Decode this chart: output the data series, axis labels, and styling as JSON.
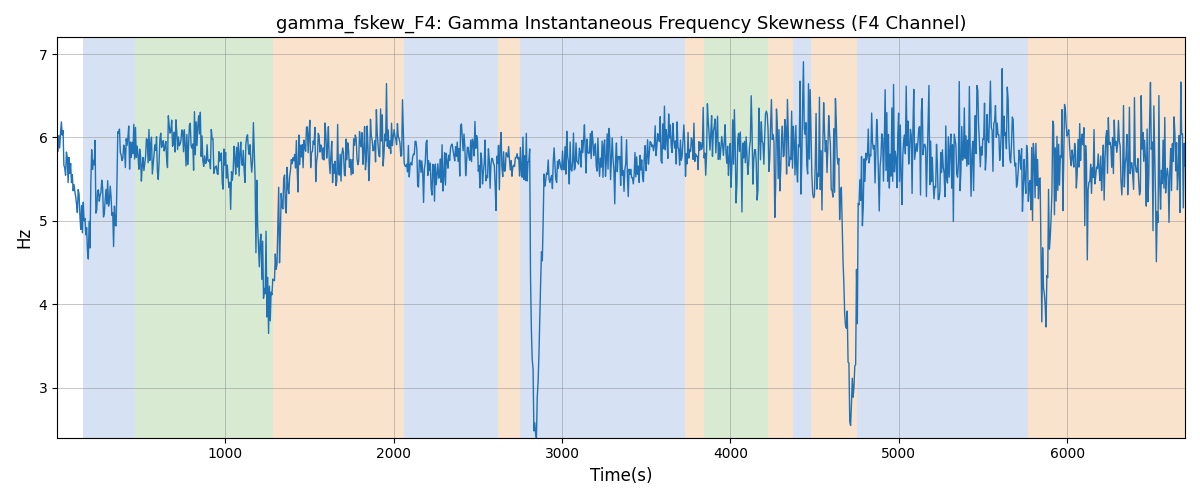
{
  "title": "gamma_fskew_F4: Gamma Instantaneous Frequency Skewness (F4 Channel)",
  "xlabel": "Time(s)",
  "ylabel": "Hz",
  "ylim": [
    2.4,
    7.2
  ],
  "xlim": [
    0,
    6700
  ],
  "yticks": [
    3,
    4,
    5,
    6,
    7
  ],
  "xticks": [
    1000,
    2000,
    3000,
    4000,
    5000,
    6000
  ],
  "line_color": "#2171b5",
  "line_width": 1.0,
  "bg_bands": [
    {
      "xmin": 155,
      "xmax": 460,
      "color": "#aec6e8",
      "alpha": 0.5
    },
    {
      "xmin": 460,
      "xmax": 1280,
      "color": "#b5d6a7",
      "alpha": 0.5
    },
    {
      "xmin": 1280,
      "xmax": 2060,
      "color": "#f7c99a",
      "alpha": 0.5
    },
    {
      "xmin": 2060,
      "xmax": 2620,
      "color": "#aec6e8",
      "alpha": 0.5
    },
    {
      "xmin": 2620,
      "xmax": 2750,
      "color": "#f7c99a",
      "alpha": 0.5
    },
    {
      "xmin": 2750,
      "xmax": 3730,
      "color": "#aec6e8",
      "alpha": 0.5
    },
    {
      "xmin": 3730,
      "xmax": 3840,
      "color": "#f7c99a",
      "alpha": 0.5
    },
    {
      "xmin": 3840,
      "xmax": 4220,
      "color": "#b5d6a7",
      "alpha": 0.5
    },
    {
      "xmin": 4220,
      "xmax": 4370,
      "color": "#f7c99a",
      "alpha": 0.5
    },
    {
      "xmin": 4370,
      "xmax": 4480,
      "color": "#aec6e8",
      "alpha": 0.5
    },
    {
      "xmin": 4480,
      "xmax": 4750,
      "color": "#f7c99a",
      "alpha": 0.5
    },
    {
      "xmin": 4750,
      "xmax": 5770,
      "color": "#aec6e8",
      "alpha": 0.5
    },
    {
      "xmin": 5770,
      "xmax": 6700,
      "color": "#f7c99a",
      "alpha": 0.5
    }
  ],
  "seed": 12345,
  "n_points": 1340,
  "time_start": 0,
  "time_end": 6700,
  "signal_mean": 5.8,
  "noise_base": 0.18,
  "noise_high": 0.35
}
